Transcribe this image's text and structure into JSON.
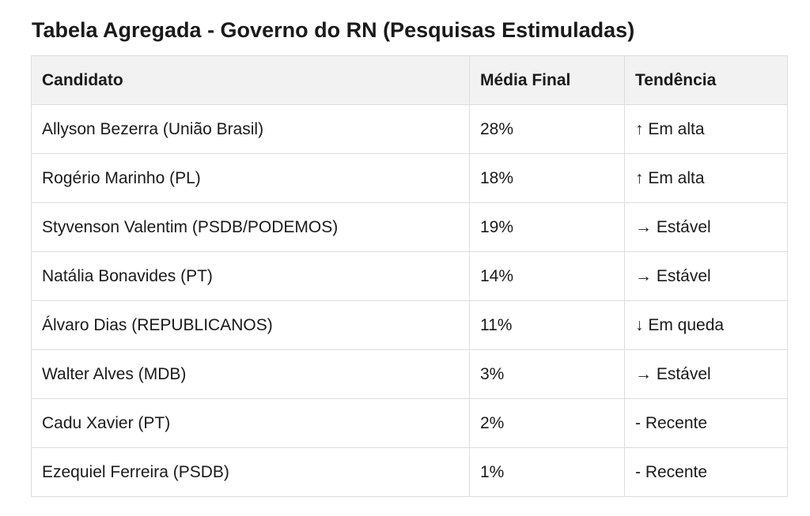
{
  "page": {
    "title": "Tabela Agregada - Governo do RN (Pesquisas Estimuladas)"
  },
  "table": {
    "headers": [
      "Candidato",
      "Média Final",
      "Tendência"
    ],
    "rows": [
      [
        "Allyson Bezerra (União Brasil)",
        "28%",
        "↑ Em alta"
      ],
      [
        "Rogério Marinho (PL)",
        "18%",
        "↑ Em alta"
      ],
      [
        "Styvenson Valentim (PSDB/PODEMOS)",
        "19%",
        "→ Estável"
      ],
      [
        "Natália Bonavides (PT)",
        "14%",
        "→ Estável"
      ],
      [
        "Álvaro Dias (REPUBLICANOS)",
        "11%",
        "↓ Em queda"
      ],
      [
        "Walter Alves (MDB)",
        "3%",
        "→ Estável"
      ],
      [
        "Cadu Xavier (PT)",
        "2%",
        "- Recente"
      ],
      [
        "Ezequiel Ferreira (PSDB)",
        "1%",
        "- Recente"
      ]
    ]
  },
  "colors": {
    "header_bg": "#f2f2f2",
    "border": "#dddddd",
    "text": "#1a1a1a"
  }
}
